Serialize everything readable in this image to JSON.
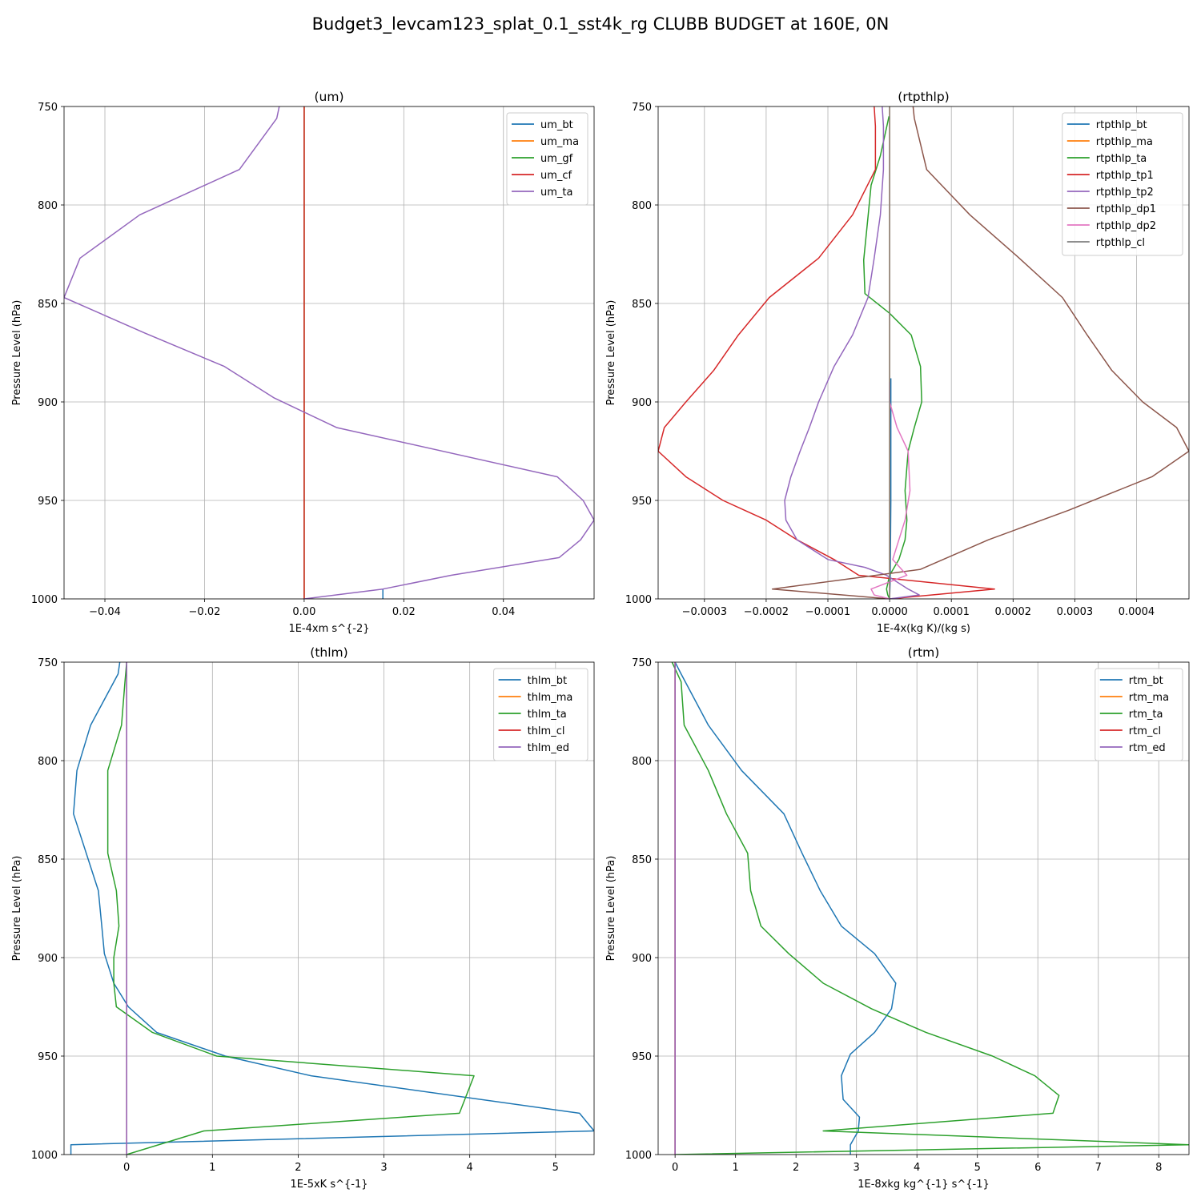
{
  "suptitle": "Budget3_levcam123_splat_0.1_sst4k_rg CLUBB BUDGET at 160E, 0N",
  "chart_data": [
    {
      "type": "line",
      "title": "(um)",
      "xlabel": "1E-4xm s^{-2}",
      "ylabel": "Pressure Level (hPa)",
      "xlim": [
        -0.0482,
        0.0582
      ],
      "ylim": [
        1000,
        750
      ],
      "y_inverted": true,
      "xticks": [
        -0.04,
        -0.02,
        0.0,
        0.02,
        0.04
      ],
      "xtick_labels": [
        "−0.04",
        "−0.02",
        "0.00",
        "0.02",
        "0.04"
      ],
      "yticks": [
        750,
        800,
        850,
        900,
        950,
        1000
      ],
      "ytick_labels": [
        "750",
        "800",
        "850",
        "900",
        "950",
        "1000"
      ],
      "grid": true,
      "legend_position": "upper right",
      "series": [
        {
          "name": "um_bt",
          "color": "#1f77b4",
          "x": [
            0.0158,
            0.0158
          ],
          "y": [
            995,
            1000
          ]
        },
        {
          "name": "um_ma",
          "color": "#ff7f0e",
          "x": [
            0,
            0
          ],
          "y": [
            750,
            1000
          ]
        },
        {
          "name": "um_gf",
          "color": "#2ca02c",
          "x": [
            0,
            0
          ],
          "y": [
            750,
            1000
          ]
        },
        {
          "name": "um_cf",
          "color": "#d62728",
          "x": [
            0,
            0
          ],
          "y": [
            750,
            1000
          ]
        },
        {
          "name": "um_ta",
          "color": "#9467bd",
          "x": [
            -0.005,
            -0.0055,
            -0.013,
            -0.033,
            -0.045,
            -0.0482,
            -0.032,
            -0.016,
            -0.006,
            0.0065,
            0.0508,
            0.056,
            0.0582,
            0.0555,
            0.0512,
            0.0295,
            0.0158,
            0.0
          ],
          "y": [
            750,
            756,
            782,
            805,
            827,
            847,
            865,
            882,
            898,
            913,
            938,
            950,
            960,
            970,
            979,
            988,
            995,
            1000
          ]
        }
      ]
    },
    {
      "type": "line",
      "title": "(rtpthlp)",
      "xlabel": "1E-4x(kg K)/(kg s)",
      "ylabel": "Pressure Level (hPa)",
      "xlim": [
        -0.000375,
        0.000485
      ],
      "ylim": [
        1000,
        750
      ],
      "y_inverted": true,
      "xticks": [
        -0.0003,
        -0.0002,
        -0.0001,
        0.0,
        0.0001,
        0.0002,
        0.0003,
        0.0004
      ],
      "xtick_labels": [
        "−0.0003",
        "−0.0002",
        "−0.0001",
        "0.0000",
        "0.0001",
        "0.0002",
        "0.0003",
        "0.0004"
      ],
      "yticks": [
        750,
        800,
        850,
        900,
        950,
        1000
      ],
      "ytick_labels": [
        "750",
        "800",
        "850",
        "900",
        "950",
        "1000"
      ],
      "grid": true,
      "legend_position": "upper right",
      "series": [
        {
          "name": "rtpthlp_bt",
          "color": "#1f77b4",
          "x": [
            2e-06,
            2e-06,
            1e-06,
            0.0
          ],
          "y": [
            888,
            950,
            990,
            1000
          ]
        },
        {
          "name": "rtpthlp_ma",
          "color": "#ff7f0e",
          "x": [
            0,
            0
          ],
          "y": [
            750,
            1000
          ]
        },
        {
          "name": "rtpthlp_ta",
          "color": "#2ca02c",
          "x": [
            -1e-06,
            -1.5e-05,
            -3e-05,
            -3.5e-05,
            -4.2e-05,
            -4e-05,
            0.0,
            3.5e-05,
            5e-05,
            5.2e-05,
            4e-05,
            3e-05,
            2.5e-05,
            2.8e-05,
            2.5e-05,
            1.5e-05,
            0.0,
            -5e-06,
            -3e-06,
            0.0
          ],
          "y": [
            755,
            775,
            790,
            806,
            828,
            845,
            855,
            866,
            882,
            900,
            913,
            925,
            945,
            960,
            970,
            980,
            988,
            995,
            998,
            1000
          ]
        },
        {
          "name": "rtpthlp_tp1",
          "color": "#d62728",
          "x": [
            -2.5e-05,
            -2.3e-05,
            -2.3e-05,
            -6e-05,
            -0.000115,
            -0.000195,
            -0.000245,
            -0.000285,
            -0.00033,
            -0.000365,
            -0.000375,
            -0.00033,
            -0.00027,
            -0.0002,
            -0.00015,
            -9e-05,
            -5e-05,
            0.00017,
            0.0
          ],
          "y": [
            750,
            760,
            782,
            805,
            827,
            847,
            866,
            884,
            900,
            913,
            925,
            938,
            950,
            960,
            970,
            980,
            988,
            995,
            1000
          ]
        },
        {
          "name": "rtpthlp_tp2",
          "color": "#9467bd",
          "x": [
            -1.2e-05,
            -1e-05,
            -1e-05,
            -1.5e-05,
            -2.5e-05,
            -3.5e-05,
            -6e-05,
            -9e-05,
            -0.000115,
            -0.00013,
            -0.000145,
            -0.00016,
            -0.00017,
            -0.000168,
            -0.00015,
            -0.0001,
            -4e-05,
            -5e-06,
            3e-05,
            4.8e-05,
            0.0
          ],
          "y": [
            750,
            760,
            782,
            805,
            827,
            847,
            866,
            882,
            900,
            913,
            925,
            938,
            950,
            960,
            970,
            980,
            984,
            988,
            995,
            998,
            1000
          ]
        },
        {
          "name": "rtpthlp_dp1",
          "color": "#8c564b",
          "x": [
            3.8e-05,
            4e-05,
            6e-05,
            0.00013,
            0.00021,
            0.00028,
            0.00032,
            0.00036,
            0.00041,
            0.000465,
            0.000485,
            0.000425,
            0.00029,
            0.00016,
            5e-05,
            -0.00019,
            0.0
          ],
          "y": [
            750,
            756,
            782,
            805,
            827,
            847,
            866,
            884,
            900,
            913,
            925,
            938,
            955,
            970,
            985,
            995,
            1000
          ]
        },
        {
          "name": "rtpthlp_dp2",
          "color": "#e377c2",
          "x": [
            0.0,
            0.0,
            1.2e-05,
            3e-05,
            3.3e-05,
            2.5e-05,
            1.5e-05,
            5e-06,
            2.8e-05,
            -3e-05,
            -2.5e-05,
            0.0
          ],
          "y": [
            890,
            900,
            913,
            925,
            945,
            960,
            970,
            980,
            988,
            995,
            998,
            1000
          ]
        },
        {
          "name": "rtpthlp_cl",
          "color": "#7f7f7f",
          "x": [
            0,
            0
          ],
          "y": [
            750,
            1000
          ]
        }
      ]
    },
    {
      "type": "line",
      "title": "(thlm)",
      "xlabel": "1E-5xK s^{-1}",
      "ylabel": "Pressure Level (hPa)",
      "xlim": [
        -0.73,
        5.45
      ],
      "ylim": [
        1000,
        750
      ],
      "y_inverted": true,
      "xticks": [
        0,
        1,
        2,
        3,
        4,
        5
      ],
      "xtick_labels": [
        "0",
        "1",
        "2",
        "3",
        "4",
        "5"
      ],
      "yticks": [
        750,
        800,
        850,
        900,
        950,
        1000
      ],
      "ytick_labels": [
        "750",
        "800",
        "850",
        "900",
        "950",
        "1000"
      ],
      "grid": true,
      "legend_position": "upper right",
      "series": [
        {
          "name": "thlm_bt",
          "color": "#1f77b4",
          "x": [
            -0.08,
            -0.1,
            -0.42,
            -0.58,
            -0.62,
            -0.33,
            -0.29,
            -0.26,
            -0.15,
            0.02,
            0.35,
            1.15,
            2.15,
            5.28,
            5.45,
            -0.65,
            -0.65
          ],
          "y": [
            750,
            756,
            782,
            805,
            827,
            866,
            884,
            898,
            913,
            925,
            938,
            950,
            960,
            979,
            988,
            995,
            1000
          ]
        },
        {
          "name": "thlm_ma",
          "color": "#ff7f0e",
          "x": [
            0,
            0
          ],
          "y": [
            750,
            1000
          ]
        },
        {
          "name": "thlm_ta",
          "color": "#2ca02c",
          "x": [
            0.0,
            -0.02,
            -0.06,
            -0.22,
            -0.22,
            -0.22,
            -0.12,
            -0.09,
            -0.15,
            -0.15,
            -0.12,
            0.3,
            1.05,
            4.05,
            3.88,
            0.9,
            0.0
          ],
          "y": [
            750,
            760,
            782,
            805,
            827,
            847,
            866,
            884,
            900,
            913,
            925,
            938,
            950,
            960,
            979,
            988,
            1000
          ]
        },
        {
          "name": "thlm_cl",
          "color": "#d62728",
          "x": [
            0,
            0
          ],
          "y": [
            750,
            1000
          ]
        },
        {
          "name": "thlm_ed",
          "color": "#9467bd",
          "x": [
            0,
            0
          ],
          "y": [
            750,
            1000
          ]
        }
      ]
    },
    {
      "type": "line",
      "title": "(rtm)",
      "xlabel": "1E-8xkg kg^{-1} s^{-1}",
      "ylabel": "Pressure Level (hPa)",
      "xlim": [
        -0.28,
        8.5
      ],
      "ylim": [
        1000,
        750
      ],
      "y_inverted": true,
      "xticks": [
        0,
        1,
        2,
        3,
        4,
        5,
        6,
        7,
        8
      ],
      "xtick_labels": [
        "0",
        "1",
        "2",
        "3",
        "4",
        "5",
        "6",
        "7",
        "8"
      ],
      "yticks": [
        750,
        800,
        850,
        900,
        950,
        1000
      ],
      "ytick_labels": [
        "750",
        "800",
        "850",
        "900",
        "950",
        "1000"
      ],
      "grid": true,
      "legend_position": "upper right",
      "series": [
        {
          "name": "rtm_bt",
          "color": "#1f77b4",
          "x": [
            0.0,
            0.1,
            0.55,
            1.1,
            1.8,
            2.1,
            2.4,
            2.75,
            3.3,
            3.65,
            3.58,
            3.3,
            2.9,
            2.75,
            2.78,
            3.05,
            3.03,
            2.9,
            2.9
          ],
          "y": [
            750,
            756,
            782,
            805,
            827,
            847,
            866,
            884,
            898,
            913,
            926,
            938,
            949,
            960,
            972,
            981,
            988,
            995,
            1000
          ]
        },
        {
          "name": "rtm_ma",
          "color": "#ff7f0e",
          "x": [
            0,
            0
          ],
          "y": [
            750,
            1000
          ]
        },
        {
          "name": "rtm_ta",
          "color": "#2ca02c",
          "x": [
            -0.05,
            0.1,
            0.15,
            0.55,
            0.85,
            1.2,
            1.25,
            1.42,
            1.88,
            2.45,
            3.25,
            4.15,
            5.25,
            5.95,
            6.35,
            6.25,
            2.45,
            8.5,
            0.0
          ],
          "y": [
            750,
            760,
            782,
            805,
            827,
            847,
            866,
            884,
            898,
            913,
            926,
            938,
            950,
            960,
            970,
            979,
            988,
            995,
            1000
          ]
        },
        {
          "name": "rtm_cl",
          "color": "#d62728",
          "x": [
            0,
            0
          ],
          "y": [
            750,
            1000
          ]
        },
        {
          "name": "rtm_ed",
          "color": "#9467bd",
          "x": [
            0,
            0
          ],
          "y": [
            750,
            1000
          ]
        }
      ]
    }
  ]
}
